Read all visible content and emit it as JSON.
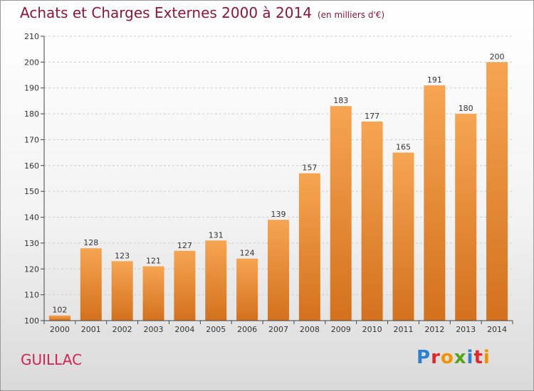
{
  "header": {
    "title": "Achats et Charges Externes 2000 à 2014",
    "subtitle": "(en milliers d'€)"
  },
  "footer": {
    "commune": "GUILLAC",
    "logo_letters": [
      {
        "ch": "P",
        "color": "#2f7fd0"
      },
      {
        "ch": "r",
        "color": "#e4262c"
      },
      {
        "ch": "o",
        "color": "#f39200"
      },
      {
        "ch": "x",
        "color": "#55a51c"
      },
      {
        "ch": "i",
        "color": "#2f7fd0"
      },
      {
        "ch": "t",
        "color": "#e4262c"
      },
      {
        "ch": "i",
        "color": "#f39200"
      }
    ]
  },
  "colors": {
    "bar_top": "#f6a552",
    "bar_bottom": "#d3711d",
    "axis": "#444444",
    "grid": "#cccccc",
    "text": "#333333"
  },
  "chart_data": {
    "type": "bar",
    "categories": [
      "2000",
      "2001",
      "2002",
      "2003",
      "2004",
      "2005",
      "2006",
      "2007",
      "2008",
      "2009",
      "2010",
      "2011",
      "2012",
      "2013",
      "2014"
    ],
    "values": [
      102,
      128,
      123,
      121,
      127,
      131,
      124,
      139,
      157,
      183,
      177,
      165,
      191,
      180,
      200
    ],
    "ylim": [
      100,
      210
    ],
    "yticks": [
      100,
      110,
      120,
      130,
      140,
      150,
      160,
      170,
      180,
      190,
      200,
      210
    ],
    "grid": true,
    "xlabel": "",
    "ylabel": ""
  }
}
